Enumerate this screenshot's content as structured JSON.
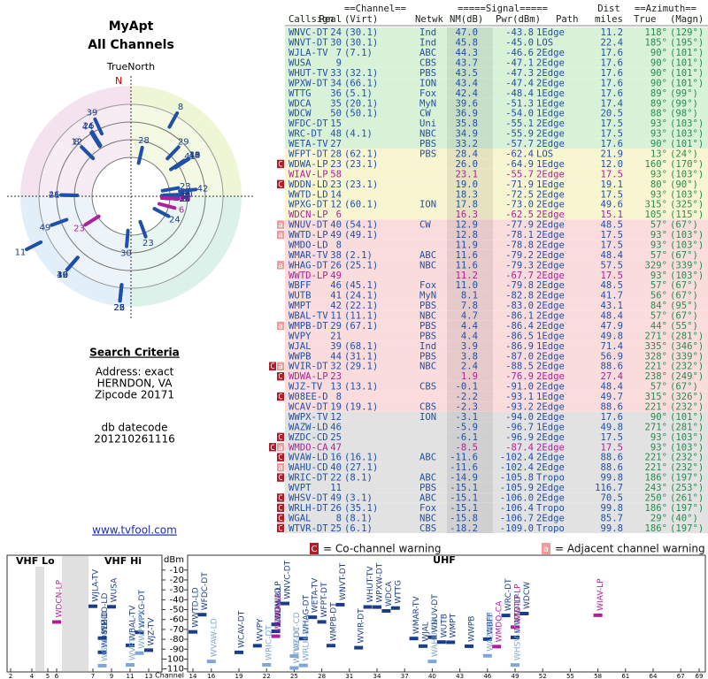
{
  "header": {
    "title": "MyApt",
    "subtitle": "All Channels"
  },
  "polar": {
    "north_label": "TrueNorth",
    "n": "N"
  },
  "search": {
    "title": "Search Criteria",
    "address": "Address: exact",
    "city": "HERNDON, VA",
    "zip": "Zipcode 20171",
    "db_label": "db datecode",
    "db_value": "201210261116"
  },
  "link": "www.tvfool.com",
  "table": {
    "head": {
      "channel": "==Channel==",
      "signal": "=====Signal=====",
      "dist": "Dist",
      "azimuth": "==Azimuth==",
      "callsign": "Callsign",
      "real": "Real",
      "virt": "(Virt)",
      "netwk": "Netwk",
      "nm": "NM(dB)",
      "pwr": "Pwr(dBm)",
      "path": "Path",
      "miles": "miles",
      "true": "True",
      "magn": "(Magn)"
    },
    "text_color": "#2050a8",
    "azimuth_color": "#2a8a50",
    "rows": [
      {
        "callsign": "WNVC-DT",
        "real": 24,
        "virt": "(30.1)",
        "netwk": "Ind",
        "nm": "47.0",
        "pwr": "-43.8",
        "path": "1Edge",
        "dist": "11.2",
        "true": "118°",
        "magn": "(129°)",
        "band": "#d8f2d8"
      },
      {
        "callsign": "WNVT-DT",
        "real": 30,
        "virt": "(30.1)",
        "netwk": "Ind",
        "nm": "45.8",
        "pwr": "-45.0",
        "path": "LOS",
        "dist": "22.4",
        "true": "185°",
        "magn": "(195°)",
        "band": "#d8f2d8"
      },
      {
        "callsign": "WJLA-TV",
        "real": 7,
        "virt": "(7.1)",
        "netwk": "ABC",
        "nm": "44.3",
        "pwr": "-46.6",
        "path": "2Edge",
        "dist": "17.6",
        "true": "90°",
        "magn": "(101°)",
        "band": "#d8f2d8"
      },
      {
        "callsign": "WUSA",
        "real": 9,
        "netwk": "CBS",
        "nm": "43.7",
        "pwr": "-47.1",
        "path": "2Edge",
        "dist": "17.6",
        "true": "90°",
        "magn": "(101°)",
        "band": "#d8f2d8"
      },
      {
        "callsign": "WHUT-TV",
        "real": 33,
        "virt": "(32.1)",
        "netwk": "PBS",
        "nm": "43.5",
        "pwr": "-47.3",
        "path": "2Edge",
        "dist": "17.6",
        "true": "90°",
        "magn": "(101°)",
        "band": "#d8f2d8"
      },
      {
        "callsign": "WPXW-DT",
        "real": 34,
        "virt": "(66.1)",
        "netwk": "ION",
        "nm": "43.4",
        "pwr": "-47.4",
        "path": "2Edge",
        "dist": "17.6",
        "true": "90°",
        "magn": "(101°)",
        "band": "#d8f2d8"
      },
      {
        "callsign": "WTTG",
        "real": 36,
        "virt": "(5.1)",
        "netwk": "Fox",
        "nm": "42.4",
        "pwr": "-48.4",
        "path": "1Edge",
        "dist": "17.6",
        "true": "89°",
        "magn": "(99°)",
        "band": "#d8f2d8"
      },
      {
        "callsign": "WDCA",
        "real": 35,
        "virt": "(20.1)",
        "netwk": "MyN",
        "nm": "39.6",
        "pwr": "-51.3",
        "path": "1Edge",
        "dist": "17.4",
        "true": "89°",
        "magn": "(99°)",
        "band": "#d8f2d8"
      },
      {
        "callsign": "WDCW",
        "real": 50,
        "virt": "(50.1)",
        "netwk": "CW",
        "nm": "36.9",
        "pwr": "-54.0",
        "path": "1Edge",
        "dist": "20.5",
        "true": "88°",
        "magn": "(98°)",
        "band": "#d8f2d8"
      },
      {
        "callsign": "WFDC-DT",
        "real": 15,
        "netwk": "Uni",
        "nm": "35.8",
        "pwr": "-55.1",
        "path": "2Edge",
        "dist": "17.5",
        "true": "93°",
        "magn": "(103°)",
        "band": "#d8f2d8"
      },
      {
        "callsign": "WRC-DT",
        "real": 48,
        "virt": "(4.1)",
        "netwk": "NBC",
        "nm": "34.9",
        "pwr": "-55.9",
        "path": "2Edge",
        "dist": "17.5",
        "true": "93°",
        "magn": "(103°)",
        "band": "#d8f2d8"
      },
      {
        "callsign": "WETA-TV",
        "real": 27,
        "netwk": "PBS",
        "nm": "33.2",
        "pwr": "-57.7",
        "path": "2Edge",
        "dist": "17.6",
        "true": "90°",
        "magn": "(101°)",
        "band": "#d8f2d8"
      },
      {
        "callsign": "WFPT-DT",
        "real": 28,
        "virt": "(62.1)",
        "netwk": "PBS",
        "nm": "28.4",
        "pwr": "-62.4",
        "path": "LOS",
        "dist": "21.9",
        "true": "13°",
        "magn": "(24°)",
        "band": "#f8f6d0"
      },
      {
        "callsign": "WDWA-LP",
        "real": 23,
        "virt": "(23.1)",
        "nm": "26.0",
        "pwr": "-64.9",
        "path": "1Edge",
        "dist": "12.0",
        "true": "160°",
        "magn": "(170°)",
        "band": "#f8f6d0",
        "warn": [
          "C"
        ]
      },
      {
        "callsign": "WIAV-LP",
        "real": 58,
        "nm": "23.1",
        "pwr": "-55.7",
        "path": "2Edge",
        "dist": "17.5",
        "true": "93°",
        "magn": "(103°)",
        "band": "#f8f6d0",
        "color": "#b0209a"
      },
      {
        "callsign": "WDDN-LD",
        "real": 23,
        "virt": "(23.1)",
        "nm": "19.0",
        "pwr": "-71.9",
        "path": "1Edge",
        "dist": "19.1",
        "true": "80°",
        "magn": "(90°)",
        "band": "#f8f6d0",
        "warn": [
          "C"
        ]
      },
      {
        "callsign": "WWTD-LD",
        "real": 14,
        "nm": "18.3",
        "pwr": "-72.5",
        "path": "2Edge",
        "dist": "17.5",
        "true": "93°",
        "magn": "(103°)",
        "band": "#f8f6d0"
      },
      {
        "callsign": "WPXG-DT",
        "real": 12,
        "virt": "(60.1)",
        "netwk": "ION",
        "nm": "17.8",
        "pwr": "-73.0",
        "path": "2Edge",
        "dist": "49.6",
        "true": "315°",
        "magn": "(325°)",
        "band": "#f8f6d0"
      },
      {
        "callsign": "WDCN-LP",
        "real": 6,
        "nm": "16.3",
        "pwr": "-62.5",
        "path": "2Edge",
        "dist": "15.1",
        "true": "105°",
        "magn": "(115°)",
        "band": "#f8f6d0",
        "color": "#b0209a"
      },
      {
        "callsign": "WNUV-DT",
        "real": 40,
        "virt": "(54.1)",
        "netwk": "CW",
        "nm": "12.9",
        "pwr": "-77.9",
        "path": "2Edge",
        "dist": "48.5",
        "true": "57°",
        "magn": "(67°)",
        "band": "#fadcdc",
        "warn": [
          "a"
        ]
      },
      {
        "callsign": "WWTD-LP",
        "real": 49,
        "virt": "(49.1)",
        "nm": "12.8",
        "pwr": "-78.1",
        "path": "2Edge",
        "dist": "17.5",
        "true": "93°",
        "magn": "(103°)",
        "band": "#fadcdc",
        "warn": [
          "a"
        ]
      },
      {
        "callsign": "WMDO-LD",
        "real": 8,
        "nm": "11.9",
        "pwr": "-78.8",
        "path": "2Edge",
        "dist": "17.5",
        "true": "93°",
        "magn": "(103°)",
        "band": "#fadcdc"
      },
      {
        "callsign": "WMAR-TV",
        "real": 38,
        "virt": "(2.1)",
        "netwk": "ABC",
        "nm": "11.6",
        "pwr": "-79.2",
        "path": "2Edge",
        "dist": "48.4",
        "true": "57°",
        "magn": "(67°)",
        "band": "#fadcdc"
      },
      {
        "callsign": "WHAG-DT",
        "real": 26,
        "virt": "(25.1)",
        "netwk": "NBC",
        "nm": "11.6",
        "pwr": "-79.3",
        "path": "2Edge",
        "dist": "57.5",
        "true": "329°",
        "magn": "(339°)",
        "band": "#fadcdc",
        "warn": [
          "a"
        ]
      },
      {
        "callsign": "WWTD-LP",
        "real": 49,
        "nm": "11.2",
        "pwr": "-67.7",
        "path": "2Edge",
        "dist": "17.5",
        "true": "93°",
        "magn": "(103°)",
        "band": "#fadcdc",
        "color": "#b0209a"
      },
      {
        "callsign": "WBFF",
        "real": 46,
        "virt": "(45.1)",
        "netwk": "Fox",
        "nm": "11.0",
        "pwr": "-79.8",
        "path": "2Edge",
        "dist": "48.5",
        "true": "57°",
        "magn": "(67°)",
        "band": "#fadcdc"
      },
      {
        "callsign": "WUTB",
        "real": 41,
        "virt": "(24.1)",
        "netwk": "MyN",
        "nm": "8.1",
        "pwr": "-82.8",
        "path": "2Edge",
        "dist": "41.7",
        "true": "56°",
        "magn": "(67°)",
        "band": "#fadcdc"
      },
      {
        "callsign": "WMPT",
        "real": 42,
        "virt": "(22.1)",
        "netwk": "PBS",
        "nm": "7.8",
        "pwr": "-83.0",
        "path": "2Edge",
        "dist": "43.1",
        "true": "84°",
        "magn": "(95°)",
        "band": "#fadcdc"
      },
      {
        "callsign": "WBAL-TV",
        "real": 11,
        "virt": "(11.1)",
        "netwk": "NBC",
        "nm": "4.7",
        "pwr": "-86.1",
        "path": "2Edge",
        "dist": "48.4",
        "true": "57°",
        "magn": "(67°)",
        "band": "#fadcdc"
      },
      {
        "callsign": "WMPB-DT",
        "real": 29,
        "virt": "(67.1)",
        "netwk": "PBS",
        "nm": "4.4",
        "pwr": "-86.4",
        "path": "2Edge",
        "dist": "47.9",
        "true": "44°",
        "magn": "(55°)",
        "band": "#fadcdc",
        "warn": [
          "a"
        ]
      },
      {
        "callsign": "WVPY",
        "real": 21,
        "netwk": "PBS",
        "nm": "4.4",
        "pwr": "-86.5",
        "path": "1Edge",
        "dist": "49.8",
        "true": "271°",
        "magn": "(281°)",
        "band": "#fadcdc"
      },
      {
        "callsign": "WJAL",
        "real": 39,
        "virt": "(68.1)",
        "netwk": "Ind",
        "nm": "3.9",
        "pwr": "-86.9",
        "path": "1Edge",
        "dist": "71.4",
        "true": "335°",
        "magn": "(346°)",
        "band": "#fadcdc"
      },
      {
        "callsign": "WWPB",
        "real": 44,
        "virt": "(31.1)",
        "netwk": "PBS",
        "nm": "3.8",
        "pwr": "-87.0",
        "path": "2Edge",
        "dist": "56.9",
        "true": "328°",
        "magn": "(339°)",
        "band": "#fadcdc"
      },
      {
        "callsign": "WVIR-DT",
        "real": 32,
        "virt": "(29.1)",
        "netwk": "NBC",
        "nm": "2.4",
        "pwr": "-88.5",
        "path": "2Edge",
        "dist": "88.6",
        "true": "221°",
        "magn": "(232°)",
        "band": "#fadcdc",
        "warn": [
          "C",
          "a"
        ]
      },
      {
        "callsign": "WDWA-LP",
        "real": 23,
        "nm": "1.9",
        "pwr": "-76.9",
        "path": "2Edge",
        "dist": "27.4",
        "true": "238°",
        "magn": "(249°)",
        "band": "#fadcdc",
        "color": "#b0209a",
        "warn": [
          "C"
        ]
      },
      {
        "callsign": "WJZ-TV",
        "real": 13,
        "virt": "(13.1)",
        "netwk": "CBS",
        "nm": "-0.1",
        "pwr": "-91.0",
        "path": "2Edge",
        "dist": "48.4",
        "true": "57°",
        "magn": "(67°)",
        "band": "#fadcdc"
      },
      {
        "callsign": "W08EE-D",
        "real": 8,
        "nm": "-2.2",
        "pwr": "-93.1",
        "path": "1Edge",
        "dist": "49.7",
        "true": "315°",
        "magn": "(326°)",
        "band": "#fadcdc",
        "warn": [
          "C"
        ]
      },
      {
        "callsign": "WCAV-DT",
        "real": 19,
        "virt": "(19.1)",
        "netwk": "CBS",
        "nm": "-2.3",
        "pwr": "-93.2",
        "path": "2Edge",
        "dist": "88.6",
        "true": "221°",
        "magn": "(232°)",
        "band": "#fadcdc"
      },
      {
        "callsign": "WWPX-TV",
        "real": 12,
        "netwk": "ION",
        "nm": "-3.1",
        "pwr": "-94.0",
        "path": "2Edge",
        "dist": "17.6",
        "true": "90°",
        "magn": "(101°)",
        "band": "#e2e2e2"
      },
      {
        "callsign": "WAZW-LD",
        "real": 46,
        "nm": "-5.9",
        "pwr": "-96.7",
        "path": "1Edge",
        "dist": "49.8",
        "true": "271°",
        "magn": "(281°)",
        "band": "#e2e2e2"
      },
      {
        "callsign": "WZDC-CD",
        "real": 25,
        "nm": "-6.1",
        "pwr": "-96.9",
        "path": "2Edge",
        "dist": "17.5",
        "true": "93°",
        "magn": "(103°)",
        "band": "#e2e2e2",
        "warn": [
          "C"
        ]
      },
      {
        "callsign": "WMDO-CA",
        "real": 47,
        "nm": "-8.5",
        "pwr": "-87.4",
        "path": "2Edge",
        "dist": "17.5",
        "true": "93°",
        "magn": "(103°)",
        "band": "#e2e2e2",
        "color": "#b0209a",
        "warn": [
          "C",
          "a"
        ]
      },
      {
        "callsign": "WVAW-LD",
        "real": 16,
        "virt": "(16.1)",
        "netwk": "ABC",
        "nm": "-11.6",
        "pwr": "-102.4",
        "path": "2Edge",
        "dist": "88.6",
        "true": "221°",
        "magn": "(232°)",
        "band": "#e2e2e2",
        "warn": [
          "C"
        ]
      },
      {
        "callsign": "WAHU-CD",
        "real": 40,
        "virt": "(27.1)",
        "nm": "-11.6",
        "pwr": "-102.4",
        "path": "2Edge",
        "dist": "88.6",
        "true": "221°",
        "magn": "(232°)",
        "band": "#e2e2e2",
        "warn": [
          "a"
        ]
      },
      {
        "callsign": "WRIC-DT",
        "real": 22,
        "virt": "(8.1)",
        "netwk": "ABC",
        "nm": "-14.9",
        "pwr": "-105.8",
        "path": "Tropo",
        "dist": "99.8",
        "true": "186°",
        "magn": "(197°)",
        "band": "#e2e2e2",
        "warn": [
          "C"
        ]
      },
      {
        "callsign": "WVPT",
        "real": 11,
        "netwk": "PBS",
        "nm": "-15.1",
        "pwr": "-105.9",
        "path": "2Edge",
        "dist": "116.7",
        "true": "243°",
        "magn": "(253°)",
        "band": "#e2e2e2"
      },
      {
        "callsign": "WHSV-DT",
        "real": 49,
        "virt": "(3.1)",
        "netwk": "ABC",
        "nm": "-15.1",
        "pwr": "-106.0",
        "path": "2Edge",
        "dist": "70.5",
        "true": "250°",
        "magn": "(261°)",
        "band": "#e2e2e2",
        "warn": [
          "C"
        ]
      },
      {
        "callsign": "WRLH-DT",
        "real": 26,
        "virt": "(35.1)",
        "netwk": "Fox",
        "nm": "-15.1",
        "pwr": "-106.4",
        "path": "Tropo",
        "dist": "99.8",
        "true": "186°",
        "magn": "(197°)",
        "band": "#e2e2e2",
        "warn": [
          "C"
        ]
      },
      {
        "callsign": "WGAL",
        "real": 8,
        "virt": "(8.1)",
        "netwk": "NBC",
        "nm": "-15.8",
        "pwr": "-106.7",
        "path": "2Edge",
        "dist": "85.7",
        "true": "29°",
        "magn": "(40°)",
        "band": "#e2e2e2",
        "warn": [
          "C"
        ]
      },
      {
        "callsign": "WTVR-DT",
        "real": 25,
        "virt": "(6.1)",
        "netwk": "CBS",
        "nm": "-18.2",
        "pwr": "-109.0",
        "path": "Tropo",
        "dist": "99.8",
        "true": "186°",
        "magn": "(197°)",
        "band": "#e2e2e2",
        "warn": [
          "C"
        ]
      }
    ]
  },
  "legend": [
    {
      "symbol": "C",
      "text": "= Co-channel warning",
      "color": "#b01c28"
    },
    {
      "symbol": "a",
      "text": "= Adjacent channel warning",
      "color": "#f09a9a"
    }
  ],
  "spectrum": {
    "vhf_lo": "VHF Lo",
    "vhf_hi": "VHF Hi",
    "uhf": "UHF",
    "y_label": "dBm",
    "x_label": "Channel",
    "ylim": [
      -113,
      5
    ],
    "yticks": [
      -10,
      -20,
      -30,
      -40,
      -50,
      -60,
      -70,
      -80,
      -90,
      -100,
      -110
    ],
    "vhf_ticks": [
      2,
      4,
      5,
      6,
      7,
      9,
      11,
      13
    ],
    "uhf_ticks": [
      14,
      16,
      19,
      22,
      25,
      28,
      31,
      34,
      37,
      40,
      43,
      46,
      49,
      52,
      55,
      58,
      61,
      64,
      67,
      69
    ]
  }
}
